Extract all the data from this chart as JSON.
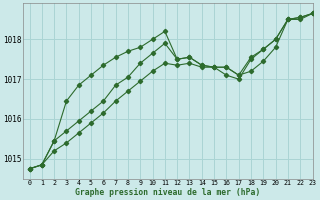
{
  "title": "Graphe pression niveau de la mer (hPa)",
  "bg_color": "#cce9e9",
  "grid_color": "#aad4d4",
  "line_color": "#2d6b2d",
  "xlim": [
    -0.5,
    23
  ],
  "ylim": [
    1014.5,
    1018.9
  ],
  "yticks": [
    1015,
    1016,
    1017,
    1018
  ],
  "xtick_labels": [
    "0",
    "1",
    "2",
    "3",
    "4",
    "5",
    "6",
    "7",
    "8",
    "9",
    "10",
    "11",
    "12",
    "13",
    "14",
    "15",
    "16",
    "17",
    "18",
    "19",
    "20",
    "21",
    "22",
    "23"
  ],
  "series1_x": [
    0,
    1,
    2,
    3,
    4,
    5,
    6,
    7,
    8,
    9,
    10,
    11,
    12,
    13,
    14,
    15,
    16,
    17,
    18,
    19,
    20,
    21,
    22,
    23
  ],
  "series1_y": [
    1014.75,
    1014.85,
    1015.45,
    1016.45,
    1016.85,
    1017.1,
    1017.35,
    1017.55,
    1017.7,
    1017.8,
    1018.0,
    1018.2,
    1017.5,
    1017.55,
    1017.35,
    1017.3,
    1017.3,
    1017.1,
    1017.2,
    1017.45,
    1017.8,
    1018.5,
    1018.55,
    1018.65
  ],
  "series2_x": [
    0,
    1,
    2,
    3,
    4,
    5,
    6,
    7,
    8,
    9,
    10,
    11,
    12,
    13,
    14,
    15,
    16,
    17,
    18,
    19,
    20,
    21,
    22,
    23
  ],
  "series2_y": [
    1014.75,
    1014.85,
    1015.45,
    1015.7,
    1015.95,
    1016.2,
    1016.45,
    1016.85,
    1017.05,
    1017.4,
    1017.65,
    1017.9,
    1017.5,
    1017.55,
    1017.35,
    1017.3,
    1017.3,
    1017.1,
    1017.55,
    1017.75,
    1018.0,
    1018.5,
    1018.55,
    1018.65
  ],
  "series3_x": [
    0,
    1,
    2,
    3,
    4,
    5,
    6,
    7,
    8,
    9,
    10,
    11,
    12,
    13,
    14,
    15,
    16,
    17,
    18,
    19,
    20,
    21,
    22,
    23
  ],
  "series3_y": [
    1014.75,
    1014.85,
    1015.2,
    1015.4,
    1015.65,
    1015.9,
    1016.15,
    1016.45,
    1016.7,
    1016.95,
    1017.2,
    1017.4,
    1017.35,
    1017.4,
    1017.3,
    1017.3,
    1017.1,
    1017.0,
    1017.5,
    1017.75,
    1018.0,
    1018.5,
    1018.5,
    1018.65
  ]
}
